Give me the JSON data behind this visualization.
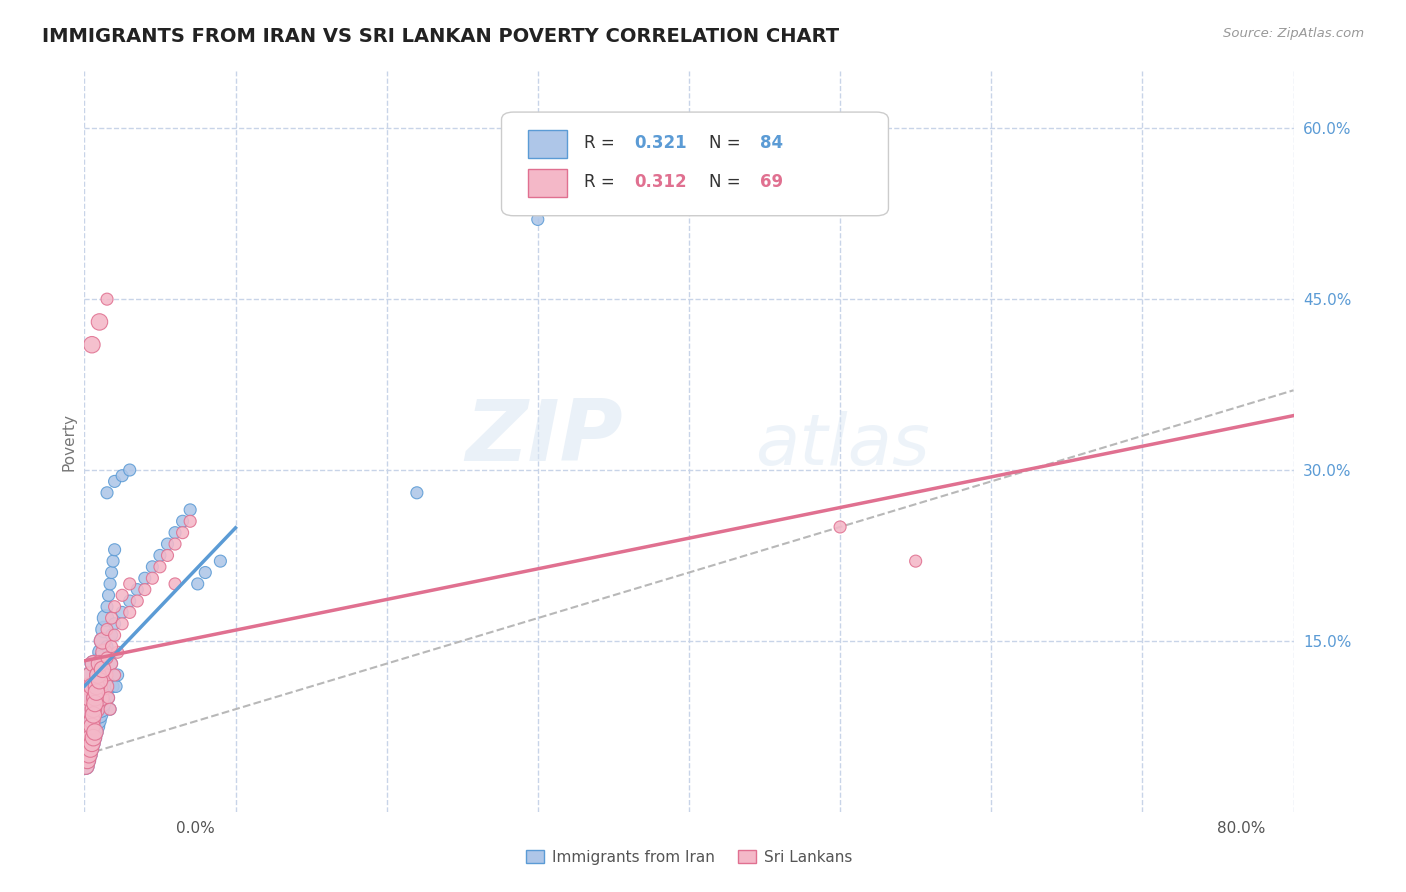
{
  "title": "IMMIGRANTS FROM IRAN VS SRI LANKAN POVERTY CORRELATION CHART",
  "source_text": "Source: ZipAtlas.com",
  "ylabel": "Poverty",
  "xlim": [
    0.0,
    0.8
  ],
  "ylim": [
    0.0,
    0.65
  ],
  "ytick_vals": [
    0.15,
    0.3,
    0.45,
    0.6
  ],
  "ytick_labels": [
    "15.0%",
    "30.0%",
    "45.0%",
    "60.0%"
  ],
  "xtick_label_left": "0.0%",
  "xtick_label_right": "80.0%",
  "iran_color_fill": "#aec6e8",
  "iran_color_edge": "#5b9bd5",
  "srilanka_color_fill": "#f4b8c8",
  "srilanka_color_edge": "#e07090",
  "iran_R": "0.321",
  "iran_N": "84",
  "srilanka_R": "0.312",
  "srilanka_N": "69",
  "legend_label_iran": "Immigrants from Iran",
  "legend_label_srilanka": "Sri Lankans",
  "watermark_zip": "ZIP",
  "watermark_atlas": "atlas",
  "bg_color": "#ffffff",
  "grid_color": "#c8d4e8",
  "accent_color": "#5b9bd5",
  "iran_scatter_x": [
    0.001,
    0.002,
    0.003,
    0.004,
    0.005,
    0.006,
    0.007,
    0.008,
    0.009,
    0.01,
    0.011,
    0.012,
    0.013,
    0.014,
    0.015,
    0.016,
    0.017,
    0.018,
    0.019,
    0.02,
    0.003,
    0.004,
    0.005,
    0.006,
    0.007,
    0.008,
    0.009,
    0.01,
    0.011,
    0.012,
    0.013,
    0.014,
    0.015,
    0.016,
    0.017,
    0.018,
    0.019,
    0.02,
    0.021,
    0.022,
    0.002,
    0.003,
    0.004,
    0.005,
    0.006,
    0.007,
    0.008,
    0.009,
    0.01,
    0.012,
    0.015,
    0.018,
    0.02,
    0.025,
    0.03,
    0.035,
    0.04,
    0.045,
    0.05,
    0.055,
    0.06,
    0.065,
    0.07,
    0.075,
    0.08,
    0.09,
    0.001,
    0.002,
    0.003,
    0.004,
    0.005,
    0.006,
    0.007,
    0.008,
    0.009,
    0.01,
    0.011,
    0.012,
    0.22,
    0.3,
    0.015,
    0.02,
    0.025,
    0.03
  ],
  "iran_scatter_y": [
    0.08,
    0.1,
    0.09,
    0.12,
    0.11,
    0.13,
    0.1,
    0.09,
    0.12,
    0.11,
    0.1,
    0.13,
    0.14,
    0.11,
    0.12,
    0.1,
    0.09,
    0.13,
    0.11,
    0.12,
    0.06,
    0.07,
    0.08,
    0.09,
    0.1,
    0.11,
    0.12,
    0.13,
    0.14,
    0.15,
    0.16,
    0.17,
    0.18,
    0.19,
    0.2,
    0.21,
    0.22,
    0.23,
    0.11,
    0.12,
    0.05,
    0.055,
    0.065,
    0.075,
    0.085,
    0.095,
    0.105,
    0.115,
    0.125,
    0.135,
    0.145,
    0.155,
    0.165,
    0.175,
    0.185,
    0.195,
    0.205,
    0.215,
    0.225,
    0.235,
    0.245,
    0.255,
    0.265,
    0.2,
    0.21,
    0.22,
    0.04,
    0.045,
    0.05,
    0.055,
    0.06,
    0.065,
    0.07,
    0.075,
    0.08,
    0.085,
    0.09,
    0.095,
    0.28,
    0.52,
    0.28,
    0.29,
    0.295,
    0.3
  ],
  "srilanka_scatter_x": [
    0.001,
    0.002,
    0.003,
    0.004,
    0.005,
    0.006,
    0.007,
    0.008,
    0.009,
    0.01,
    0.011,
    0.012,
    0.013,
    0.014,
    0.015,
    0.016,
    0.017,
    0.018,
    0.02,
    0.022,
    0.003,
    0.004,
    0.005,
    0.006,
    0.007,
    0.008,
    0.009,
    0.01,
    0.012,
    0.015,
    0.018,
    0.02,
    0.025,
    0.03,
    0.002,
    0.003,
    0.004,
    0.005,
    0.006,
    0.007,
    0.008,
    0.01,
    0.012,
    0.015,
    0.018,
    0.02,
    0.025,
    0.03,
    0.035,
    0.04,
    0.045,
    0.05,
    0.055,
    0.06,
    0.065,
    0.07,
    0.001,
    0.002,
    0.003,
    0.004,
    0.005,
    0.006,
    0.007,
    0.06,
    0.5,
    0.55,
    0.005,
    0.01,
    0.015
  ],
  "srilanka_scatter_y": [
    0.09,
    0.11,
    0.1,
    0.12,
    0.11,
    0.13,
    0.1,
    0.09,
    0.12,
    0.11,
    0.1,
    0.13,
    0.14,
    0.11,
    0.12,
    0.1,
    0.09,
    0.13,
    0.12,
    0.14,
    0.06,
    0.07,
    0.08,
    0.09,
    0.1,
    0.11,
    0.12,
    0.13,
    0.15,
    0.16,
    0.17,
    0.18,
    0.19,
    0.2,
    0.05,
    0.055,
    0.065,
    0.075,
    0.085,
    0.095,
    0.105,
    0.115,
    0.125,
    0.135,
    0.145,
    0.155,
    0.165,
    0.175,
    0.185,
    0.195,
    0.205,
    0.215,
    0.225,
    0.235,
    0.245,
    0.255,
    0.04,
    0.045,
    0.05,
    0.055,
    0.06,
    0.065,
    0.07,
    0.2,
    0.25,
    0.22,
    0.41,
    0.43,
    0.45
  ],
  "x_grid": [
    0.0,
    0.1,
    0.2,
    0.3,
    0.4,
    0.5,
    0.6,
    0.7,
    0.8
  ]
}
